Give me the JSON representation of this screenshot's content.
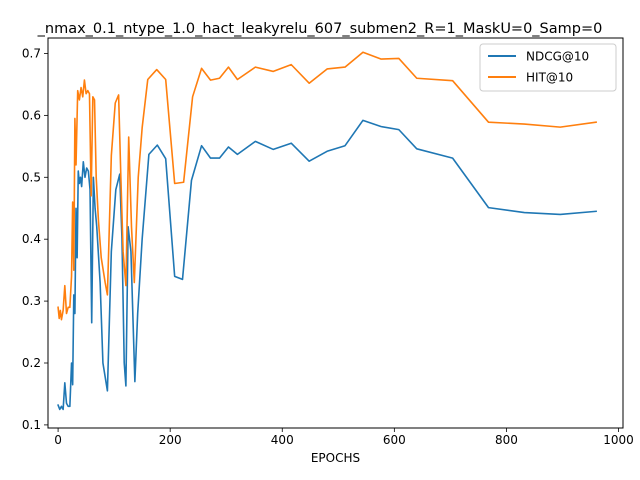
{
  "chart_data": {
    "type": "line",
    "title": "_nmax_0.1_ntype_1.0_hact_leakyrelu_607_submen2_R=1_MaskU=0_Samp=0",
    "xlabel": "EPOCHS",
    "ylabel": "",
    "xlim": [
      -18,
      1008
    ],
    "ylim": [
      0.095,
      0.725
    ],
    "xticks": [
      0,
      200,
      400,
      600,
      800,
      1000
    ],
    "yticks": [
      0.1,
      0.2,
      0.3,
      0.4,
      0.5,
      0.6,
      0.7
    ],
    "grid": false,
    "legend_position": "upper right",
    "series": [
      {
        "name": "NDCG@10",
        "color": "#1f77b4",
        "points": [
          [
            0,
            0.132
          ],
          [
            3,
            0.125
          ],
          [
            6,
            0.13
          ],
          [
            9,
            0.125
          ],
          [
            12,
            0.168
          ],
          [
            15,
            0.135
          ],
          [
            18,
            0.13
          ],
          [
            21,
            0.13
          ],
          [
            24,
            0.2
          ],
          [
            26,
            0.165
          ],
          [
            28,
            0.31
          ],
          [
            30,
            0.28
          ],
          [
            32,
            0.45
          ],
          [
            34,
            0.37
          ],
          [
            36,
            0.51
          ],
          [
            38,
            0.49
          ],
          [
            40,
            0.5
          ],
          [
            42,
            0.485
          ],
          [
            45,
            0.525
          ],
          [
            48,
            0.5
          ],
          [
            51,
            0.515
          ],
          [
            54,
            0.51
          ],
          [
            57,
            0.48
          ],
          [
            60,
            0.265
          ],
          [
            63,
            0.5
          ],
          [
            66,
            0.45
          ],
          [
            69,
            0.42
          ],
          [
            75,
            0.33
          ],
          [
            80,
            0.2
          ],
          [
            88,
            0.155
          ],
          [
            95,
            0.38
          ],
          [
            103,
            0.48
          ],
          [
            110,
            0.505
          ],
          [
            114,
            0.4
          ],
          [
            118,
            0.2
          ],
          [
            121,
            0.163
          ],
          [
            125,
            0.42
          ],
          [
            130,
            0.38
          ],
          [
            137,
            0.17
          ],
          [
            142,
            0.28
          ],
          [
            150,
            0.4
          ],
          [
            162,
            0.537
          ],
          [
            177,
            0.552
          ],
          [
            192,
            0.53
          ],
          [
            208,
            0.34
          ],
          [
            222,
            0.335
          ],
          [
            238,
            0.495
          ],
          [
            256,
            0.551
          ],
          [
            272,
            0.531
          ],
          [
            288,
            0.531
          ],
          [
            304,
            0.549
          ],
          [
            320,
            0.537
          ],
          [
            352,
            0.558
          ],
          [
            384,
            0.545
          ],
          [
            416,
            0.555
          ],
          [
            448,
            0.526
          ],
          [
            480,
            0.542
          ],
          [
            512,
            0.551
          ],
          [
            544,
            0.592
          ],
          [
            576,
            0.582
          ],
          [
            608,
            0.577
          ],
          [
            640,
            0.546
          ],
          [
            704,
            0.531
          ],
          [
            768,
            0.451
          ],
          [
            832,
            0.443
          ],
          [
            896,
            0.44
          ],
          [
            960,
            0.445
          ]
        ]
      },
      {
        "name": "HIT@10",
        "color": "#ff7f0e",
        "points": [
          [
            0,
            0.29
          ],
          [
            2,
            0.272
          ],
          [
            4,
            0.285
          ],
          [
            6,
            0.27
          ],
          [
            9,
            0.285
          ],
          [
            12,
            0.325
          ],
          [
            15,
            0.28
          ],
          [
            18,
            0.29
          ],
          [
            21,
            0.29
          ],
          [
            24,
            0.34
          ],
          [
            26,
            0.46
          ],
          [
            28,
            0.35
          ],
          [
            30,
            0.595
          ],
          [
            32,
            0.52
          ],
          [
            35,
            0.64
          ],
          [
            38,
            0.625
          ],
          [
            41,
            0.645
          ],
          [
            44,
            0.63
          ],
          [
            47,
            0.657
          ],
          [
            50,
            0.635
          ],
          [
            53,
            0.64
          ],
          [
            56,
            0.635
          ],
          [
            59,
            0.47
          ],
          [
            62,
            0.63
          ],
          [
            65,
            0.625
          ],
          [
            68,
            0.5
          ],
          [
            72,
            0.43
          ],
          [
            77,
            0.37
          ],
          [
            84,
            0.33
          ],
          [
            88,
            0.31
          ],
          [
            95,
            0.535
          ],
          [
            102,
            0.62
          ],
          [
            108,
            0.633
          ],
          [
            112,
            0.5
          ],
          [
            116,
            0.38
          ],
          [
            121,
            0.325
          ],
          [
            126,
            0.565
          ],
          [
            131,
            0.42
          ],
          [
            136,
            0.33
          ],
          [
            143,
            0.5
          ],
          [
            150,
            0.58
          ],
          [
            160,
            0.658
          ],
          [
            176,
            0.674
          ],
          [
            192,
            0.658
          ],
          [
            208,
            0.49
          ],
          [
            224,
            0.492
          ],
          [
            240,
            0.63
          ],
          [
            256,
            0.676
          ],
          [
            272,
            0.657
          ],
          [
            288,
            0.66
          ],
          [
            304,
            0.678
          ],
          [
            320,
            0.658
          ],
          [
            352,
            0.678
          ],
          [
            384,
            0.671
          ],
          [
            416,
            0.682
          ],
          [
            448,
            0.652
          ],
          [
            480,
            0.675
          ],
          [
            512,
            0.678
          ],
          [
            544,
            0.702
          ],
          [
            576,
            0.691
          ],
          [
            608,
            0.692
          ],
          [
            640,
            0.66
          ],
          [
            704,
            0.656
          ],
          [
            768,
            0.589
          ],
          [
            832,
            0.586
          ],
          [
            896,
            0.581
          ],
          [
            960,
            0.589
          ]
        ]
      }
    ]
  }
}
